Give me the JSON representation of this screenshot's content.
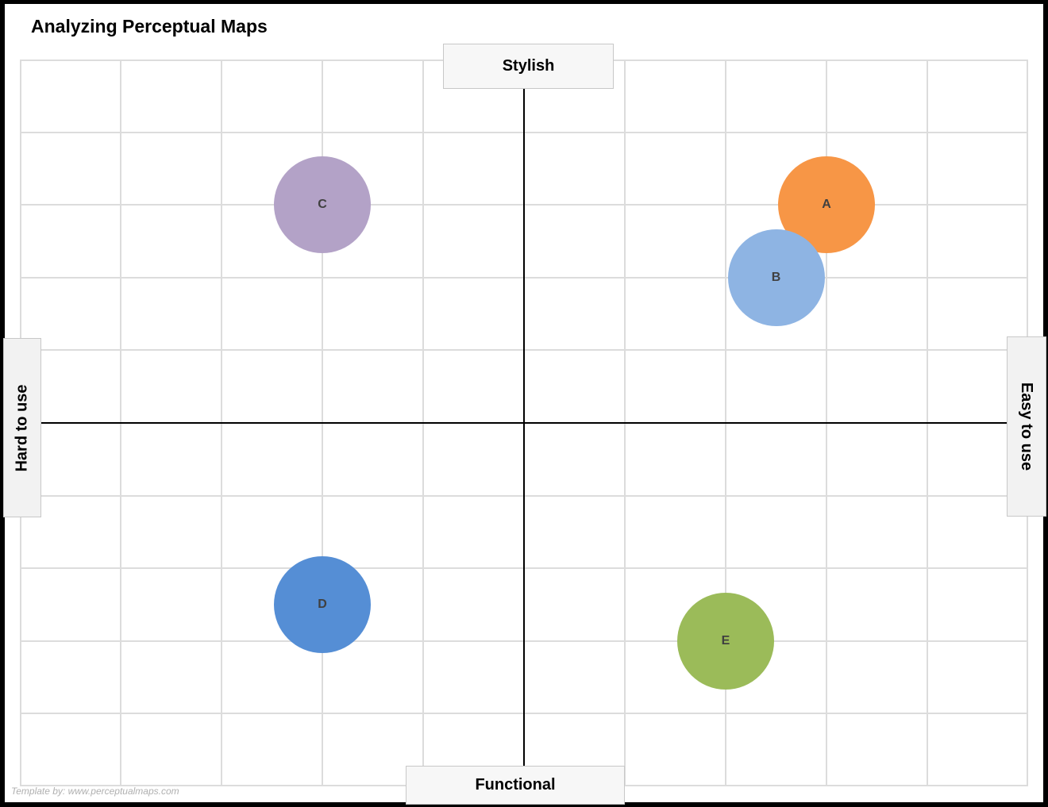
{
  "title": "Analyzing Perceptual Maps",
  "axes": {
    "top_label": "Stylish",
    "bottom_label": "Functional",
    "left_label": "Hard to use",
    "right_label": "Easy to use"
  },
  "credit": "Template by: www.perceptualmaps.com",
  "bubbles": [
    {
      "label": "A",
      "color": "#F79646"
    },
    {
      "label": "B",
      "color": "#8EB4E3"
    },
    {
      "label": "C",
      "color": "#B3A2C7"
    },
    {
      "label": "D",
      "color": "#558ED5"
    },
    {
      "label": "E",
      "color": "#9BBB59"
    }
  ],
  "chart_data": {
    "type": "scatter",
    "title": "Analyzing Perceptual Maps",
    "xlabel": "Hard to use  ←→  Easy to use",
    "ylabel": "Functional  ←→  Stylish",
    "axis_labels": {
      "x_neg": "Hard to use",
      "x_pos": "Easy to use",
      "y_neg": "Functional",
      "y_pos": "Stylish"
    },
    "xlim": [
      -5,
      5
    ],
    "ylim": [
      -5,
      5
    ],
    "grid": true,
    "legend": "none",
    "points": [
      {
        "label": "A",
        "x": 3,
        "y": 3,
        "color": "#F79646"
      },
      {
        "label": "B",
        "x": 2.5,
        "y": 2,
        "color": "#8EB4E3"
      },
      {
        "label": "C",
        "x": -2,
        "y": 3,
        "color": "#B3A2C7"
      },
      {
        "label": "D",
        "x": -2,
        "y": -2.5,
        "color": "#558ED5"
      },
      {
        "label": "E",
        "x": 2,
        "y": -3,
        "color": "#9BBB59"
      }
    ],
    "annotations": [
      "Template by: www.perceptualmaps.com"
    ]
  }
}
